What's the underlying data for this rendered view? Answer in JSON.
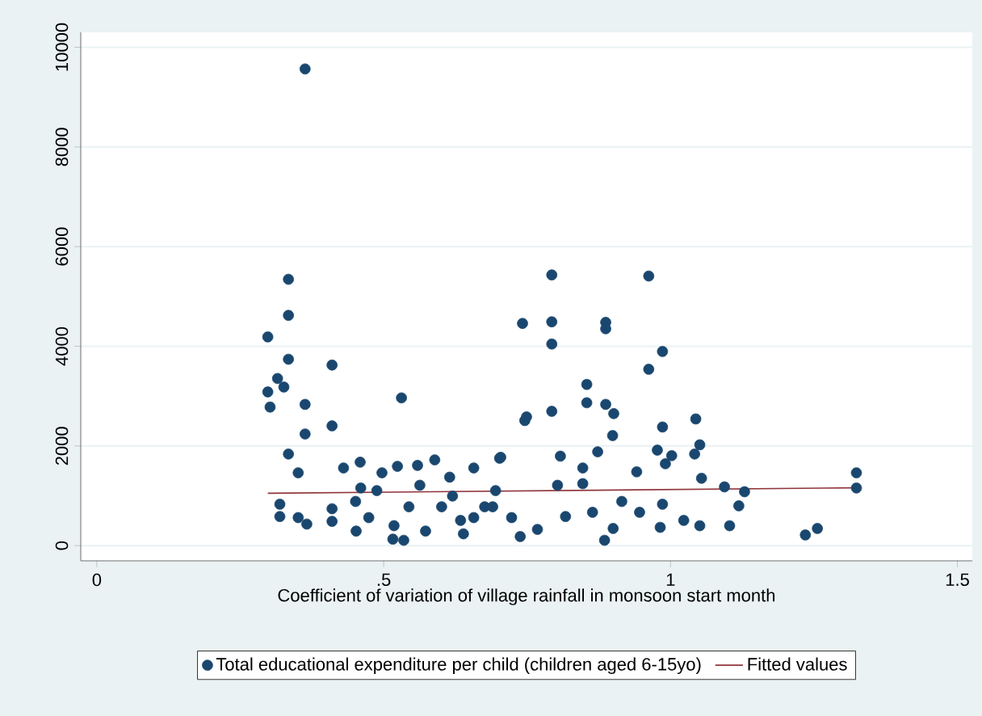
{
  "chart_data": {
    "type": "scatter",
    "xlabel": "Coefficient of variation of village rainfall in monsoon start month",
    "xlim": [
      -0.028,
      1.526
    ],
    "ylim": [
      -305,
      10300
    ],
    "xticks": [
      0,
      {
        "value": 0.5,
        "label": ".5"
      },
      1,
      1.5
    ],
    "yticks": [
      0,
      2000,
      4000,
      6000,
      8000,
      10000
    ],
    "grid": "y",
    "legend": "bottom",
    "marker": "circle",
    "series": [
      {
        "name": "Total educational expenditure per child (children aged 6-15yo)",
        "color": "#1a476f",
        "x": [
          0.363,
          0.334,
          0.334,
          0.298,
          0.334,
          0.41,
          0.315,
          0.298,
          0.326,
          0.302,
          0.363,
          0.531,
          0.363,
          0.41,
          0.334,
          0.351,
          0.43,
          0.459,
          0.497,
          0.524,
          0.559,
          0.589,
          0.615,
          0.657,
          0.702,
          0.742,
          0.746,
          0.319,
          0.319,
          0.351,
          0.366,
          0.41,
          0.41,
          0.451,
          0.452,
          0.474,
          0.516,
          0.535,
          0.518,
          0.544,
          0.488,
          0.573,
          0.601,
          0.634,
          0.639,
          0.676,
          0.695,
          0.657,
          0.738,
          0.723,
          0.563,
          0.62,
          0.46,
          0.793,
          0.962,
          0.793,
          0.793,
          0.887,
          0.887,
          0.986,
          0.962,
          0.854,
          0.854,
          0.887,
          0.901,
          0.899,
          0.793,
          0.749,
          0.986,
          1.044,
          1.051,
          1.042,
          0.977,
          1.002,
          0.991,
          0.873,
          0.808,
          0.941,
          0.847,
          0.847,
          0.803,
          1.054,
          1.094,
          1.129,
          1.119,
          1.103,
          1.051,
          0.982,
          0.885,
          0.9,
          0.768,
          1.324,
          1.324,
          1.235,
          1.256,
          0.946,
          0.986,
          1.023,
          0.817,
          0.864,
          0.915,
          0.704,
          0.69
        ],
        "values": [
          9565,
          5344,
          4620,
          4188,
          3740,
          3623,
          3354,
          3084,
          3182,
          2780,
          2834,
          2964,
          2240,
          2403,
          1838,
          1461,
          1558,
          1675,
          1461,
          1591,
          1610,
          1721,
          1373,
          1558,
          1753,
          4458,
          2510,
          831,
          584,
          562,
          432,
          740,
          487,
          886,
          292,
          562,
          130,
          107,
          400,
          779,
          1104,
          292,
          779,
          506,
          237,
          779,
          1104,
          562,
          182,
          562,
          1211,
          994,
          1156,
          5432,
          5409,
          4490,
          4045,
          4481,
          4351,
          3896,
          3539,
          3234,
          2867,
          2834,
          2649,
          2208,
          2695,
          2584,
          2380,
          2542,
          2023,
          1838,
          1916,
          1805,
          1643,
          1883,
          1795,
          1481,
          1558,
          1243,
          1211,
          1351,
          1179,
          1081,
          799,
          399,
          399,
          367,
          107,
          344,
          325,
          1461,
          1156,
          214,
          344,
          669,
          831,
          506,
          584,
          669,
          886,
          1773,
          779
        ]
      },
      {
        "name": "Fitted values",
        "type": "line",
        "color": "#90353b",
        "marker": "none",
        "x": [
          0.298,
          1.324
        ],
        "values": [
          1050,
          1160
        ]
      }
    ]
  }
}
